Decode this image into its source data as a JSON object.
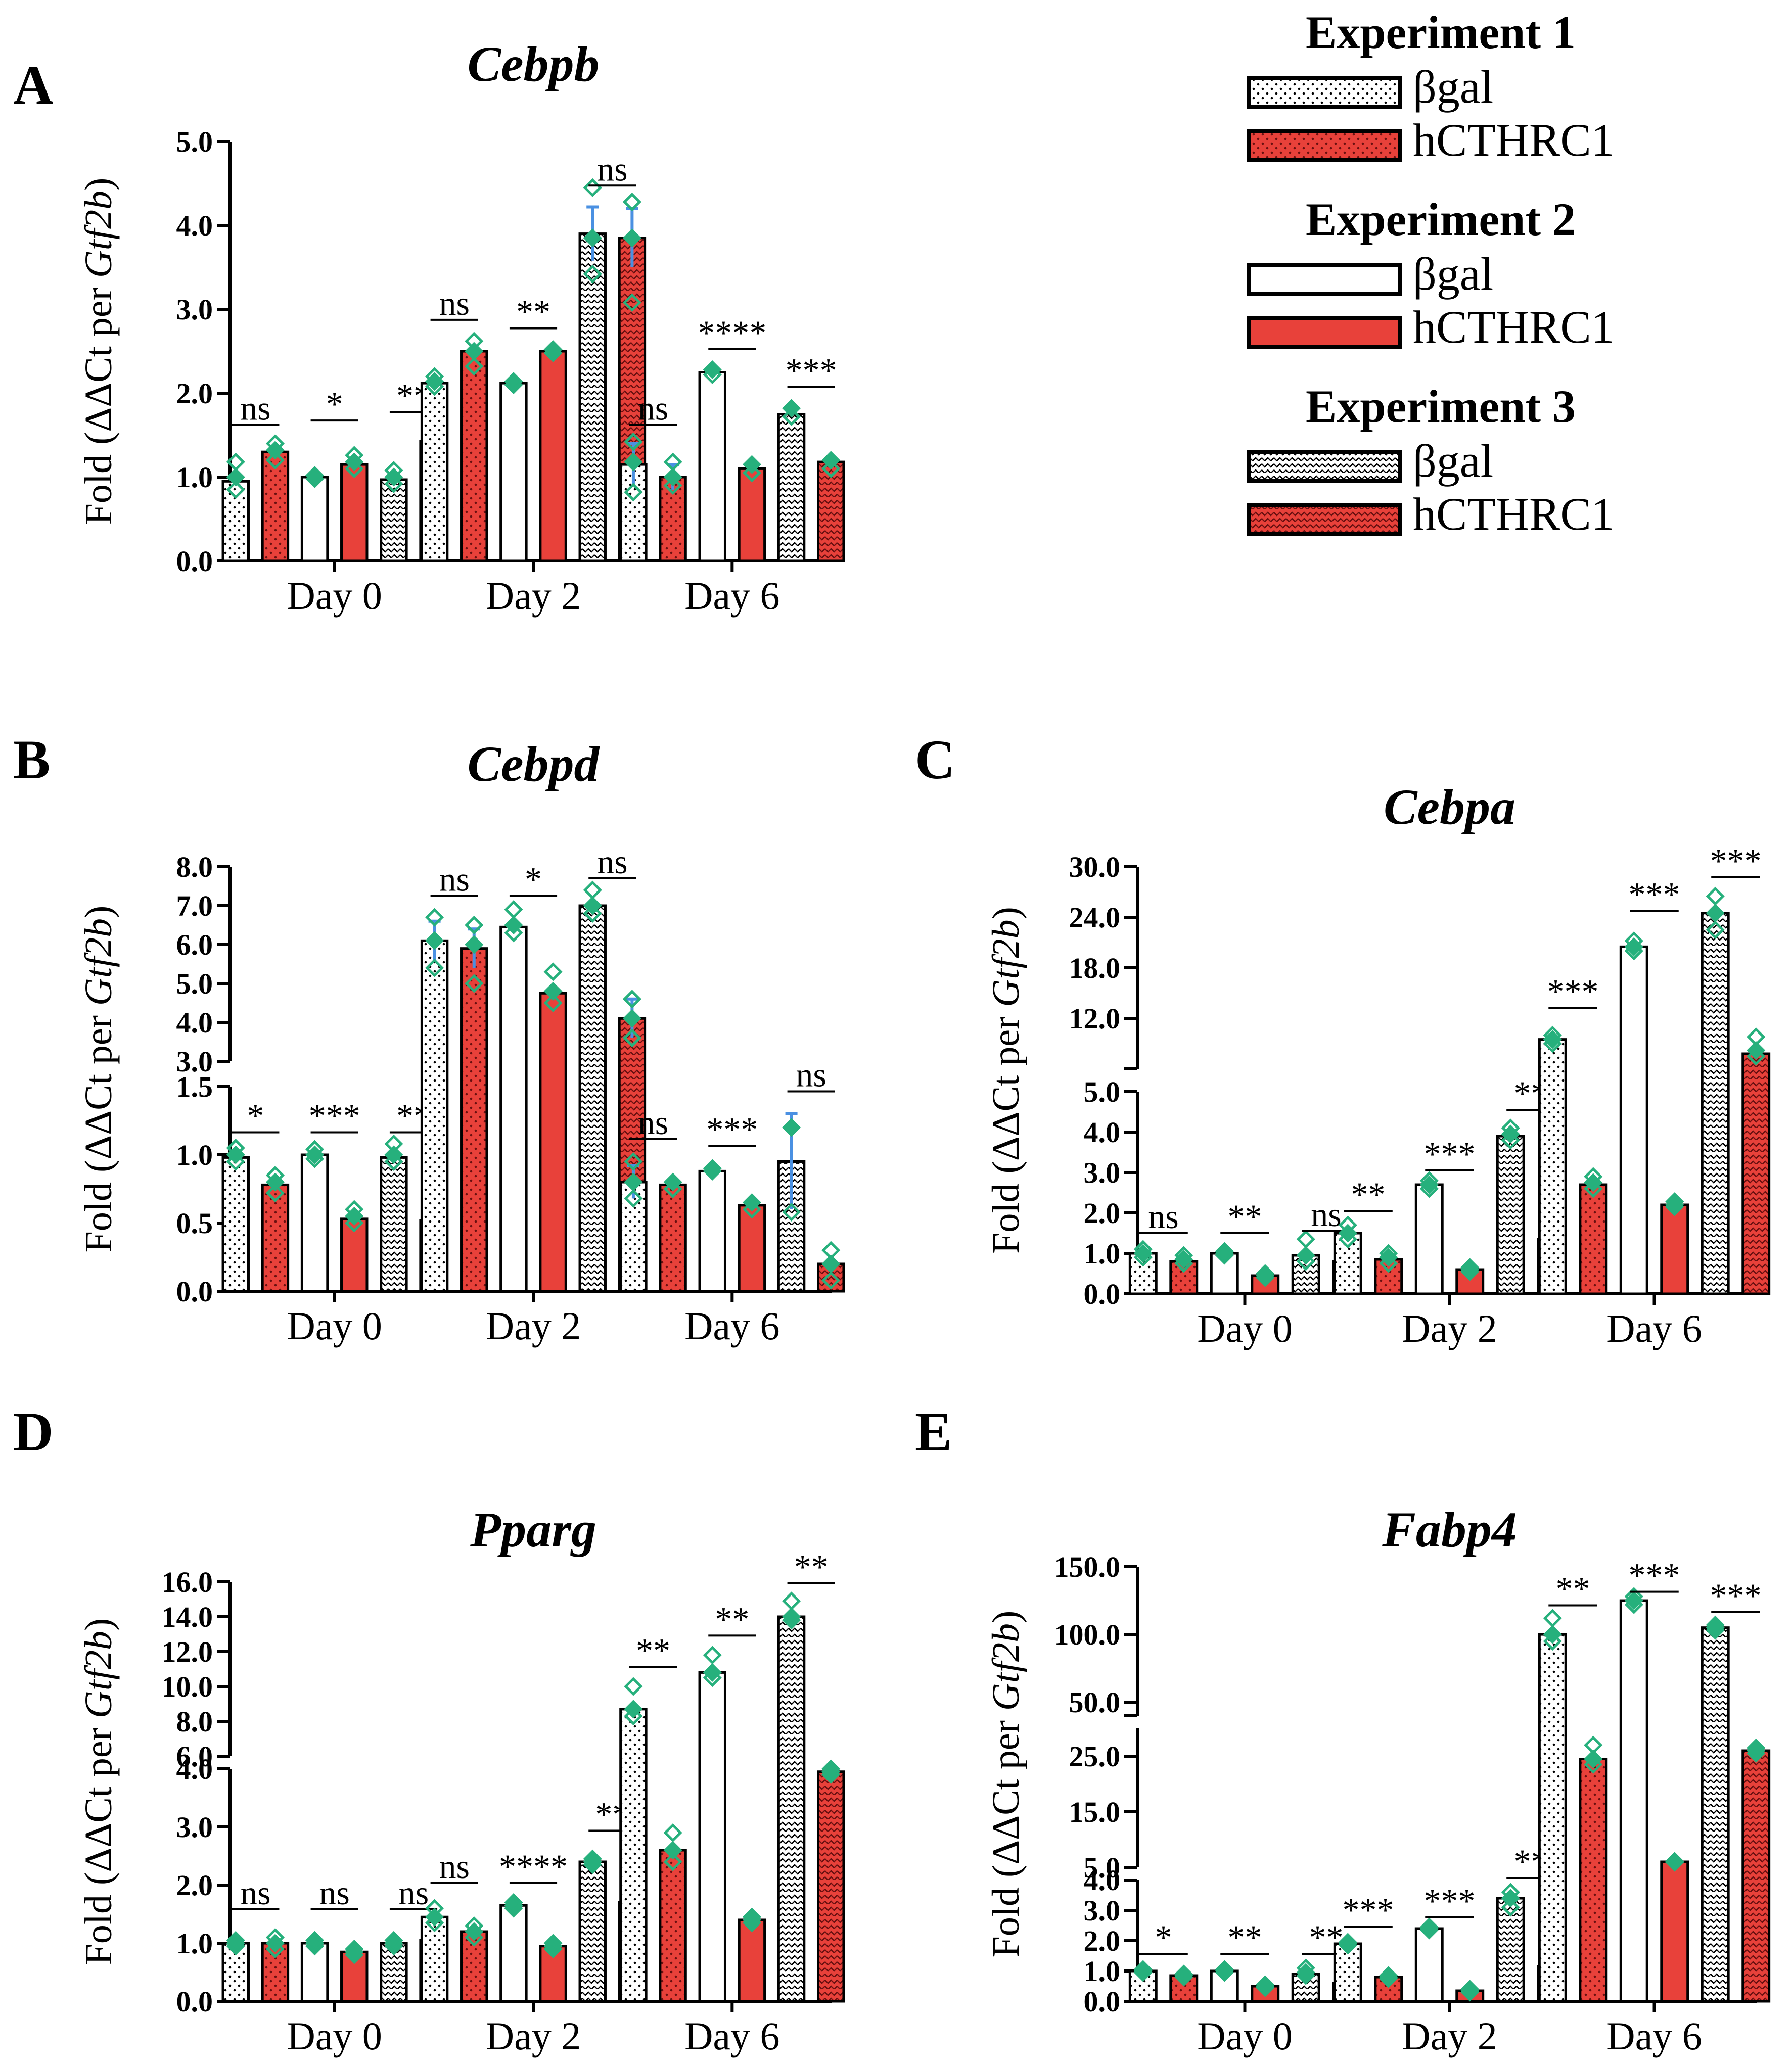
{
  "colors": {
    "bgal": "#ffffff",
    "hcthrc1": "#e8413a",
    "marker": "#26b07c",
    "errorbar": "#4a90e2",
    "axis": "#000000"
  },
  "legend": {
    "groups": [
      {
        "title": "Experiment 1",
        "items": [
          {
            "label": "βgal",
            "fill": "bgal",
            "pattern": "dots"
          },
          {
            "label": "hCTHRC1",
            "fill": "hcthrc1",
            "pattern": "dots"
          }
        ]
      },
      {
        "title": "Experiment 2",
        "items": [
          {
            "label": "βgal",
            "fill": "bgal",
            "pattern": "none"
          },
          {
            "label": "hCTHRC1",
            "fill": "hcthrc1",
            "pattern": "none"
          }
        ]
      },
      {
        "title": "Experiment 3",
        "items": [
          {
            "label": "βgal",
            "fill": "bgal",
            "pattern": "wave"
          },
          {
            "label": "hCTHRC1",
            "fill": "hcthrc1",
            "pattern": "wave"
          }
        ]
      }
    ]
  },
  "chart_data": [
    {
      "panel": "A",
      "title": "Cebpb",
      "type": "bar",
      "ylabel_pre": "Fold (ΔΔCt per ",
      "ylabel_gene": "Gtf2b",
      "ylabel_post": ")",
      "categories": [
        "Day 0",
        "Day 2",
        "Day 6"
      ],
      "bar_order": [
        "Exp1 βgal",
        "Exp1 hCTHRC1",
        "Exp2 βgal",
        "Exp2 hCTHRC1",
        "Exp3 βgal",
        "Exp3 hCTHRC1"
      ],
      "segments": [
        {
          "range": [
            0,
            5
          ],
          "ticks": [
            "0.0",
            "1.0",
            "2.0",
            "3.0",
            "4.0",
            "5.0"
          ]
        }
      ],
      "values": [
        [
          0.95,
          1.3,
          1.0,
          1.15,
          0.97,
          1.43
        ],
        [
          2.12,
          2.5,
          2.12,
          2.5,
          3.9,
          3.85
        ],
        [
          1.15,
          1.0,
          2.25,
          1.1,
          1.75,
          1.18
        ]
      ],
      "errors": [
        [
          0,
          0,
          0,
          0,
          0,
          0
        ],
        [
          0,
          0,
          0,
          0,
          0.32,
          0.35
        ],
        [
          0.25,
          0.15,
          0,
          0,
          0,
          0
        ]
      ],
      "points": [
        [
          [
            0.85,
            1.0,
            1.18
          ],
          [
            1.2,
            1.32,
            1.4
          ],
          [
            0.98,
            1.02
          ],
          [
            1.1,
            1.18,
            1.26
          ],
          [
            0.92,
            1.0,
            1.08
          ],
          [
            1.38,
            1.45,
            1.55
          ]
        ],
        [
          [
            2.08,
            2.14,
            2.2
          ],
          [
            2.32,
            2.5,
            2.62
          ],
          [
            2.1,
            2.14
          ],
          [
            2.48,
            2.52
          ],
          [
            3.42,
            3.85,
            4.45
          ],
          [
            3.08,
            3.85,
            4.28
          ]
        ],
        [
          [
            0.82,
            1.18,
            1.42
          ],
          [
            0.9,
            1.0,
            1.18
          ],
          [
            2.22,
            2.28
          ],
          [
            1.05,
            1.15
          ],
          [
            1.72,
            1.82
          ],
          [
            1.1,
            1.2
          ]
        ]
      ],
      "sig_labels": [
        [
          "ns",
          "*",
          "**"
        ],
        [
          "ns",
          "**",
          "ns"
        ],
        [
          "ns",
          "****",
          "***"
        ]
      ],
      "sig_values": [
        [
          1.6,
          1.65,
          1.75
        ],
        [
          2.85,
          2.75,
          4.45
        ],
        [
          1.6,
          2.5,
          2.05
        ]
      ]
    },
    {
      "panel": "B",
      "title": "Cebpd",
      "type": "bar",
      "ylabel_pre": "Fold (ΔΔCt per ",
      "ylabel_gene": "Gtf2b",
      "ylabel_post": ")",
      "categories": [
        "Day 0",
        "Day 2",
        "Day 6"
      ],
      "bar_order": [
        "Exp1 βgal",
        "Exp1 hCTHRC1",
        "Exp2 βgal",
        "Exp2 hCTHRC1",
        "Exp3 βgal",
        "Exp3 hCTHRC1"
      ],
      "segments": [
        {
          "range": [
            0,
            1.5
          ],
          "ticks": [
            "0.0",
            "0.5",
            "1.0",
            "1.5"
          ]
        },
        {
          "range": [
            3,
            8
          ],
          "ticks": [
            "3.0",
            "4.0",
            "5.0",
            "6.0",
            "7.0",
            "8.0"
          ]
        }
      ],
      "values": [
        [
          0.98,
          0.78,
          1.0,
          0.53,
          0.98,
          0.52
        ],
        [
          6.1,
          5.9,
          6.45,
          4.75,
          7.0,
          4.1
        ],
        [
          0.8,
          0.78,
          0.88,
          0.63,
          0.95,
          0.2
        ]
      ],
      "errors": [
        [
          0,
          0,
          0,
          0,
          0,
          0
        ],
        [
          0.5,
          0.5,
          0,
          0,
          0,
          0.5
        ],
        [
          0.12,
          0,
          0,
          0,
          0.35,
          0
        ]
      ],
      "points": [
        [
          [
            0.95,
            1.0,
            1.05
          ],
          [
            0.72,
            0.8,
            0.85
          ],
          [
            0.97,
            1.0,
            1.04
          ],
          [
            0.5,
            0.55,
            0.6
          ],
          [
            0.95,
            1.0,
            1.08
          ],
          [
            0.48,
            0.55,
            0.6
          ]
        ],
        [
          [
            5.4,
            6.1,
            6.7
          ],
          [
            5.0,
            6.0,
            6.5
          ],
          [
            6.3,
            6.5,
            6.9
          ],
          [
            4.5,
            4.8,
            5.3
          ],
          [
            6.8,
            7.0,
            7.4
          ],
          [
            3.6,
            4.1,
            4.6
          ]
        ],
        [
          [
            0.68,
            0.8,
            0.95
          ],
          [
            0.75,
            0.8
          ],
          [
            0.88,
            0.9
          ],
          [
            0.6,
            0.65
          ],
          [
            0.58,
            1.2
          ],
          [
            0.08,
            0.2,
            0.3
          ]
        ]
      ],
      "sig_labels": [
        [
          "*",
          "***",
          "**"
        ],
        [
          "ns",
          "*",
          "ns"
        ],
        [
          "ns",
          "***",
          "ns"
        ]
      ],
      "sig_values": [
        [
          1.15,
          1.15,
          1.15
        ],
        [
          7.2,
          7.2,
          7.65
        ],
        [
          1.1,
          1.05,
          1.45
        ]
      ]
    },
    {
      "panel": "C",
      "title": "Cebpa",
      "type": "bar",
      "ylabel_pre": "Fold (ΔΔCt per ",
      "ylabel_gene": "Gtf2b",
      "ylabel_post": ")",
      "categories": [
        "Day 0",
        "Day 2",
        "Day 6"
      ],
      "bar_order": [
        "Exp1 βgal",
        "Exp1 hCTHRC1",
        "Exp2 βgal",
        "Exp2 hCTHRC1",
        "Exp3 βgal",
        "Exp3 hCTHRC1"
      ],
      "segments": [
        {
          "range": [
            0,
            5
          ],
          "ticks": [
            "0.0",
            "1.0",
            "2.0",
            "3.0",
            "4.0",
            "5.0"
          ]
        },
        {
          "range": [
            6,
            30
          ],
          "ticks": [
            "12.0",
            "18.0",
            "24.0",
            "30.0"
          ]
        }
      ],
      "values": [
        [
          1.0,
          0.8,
          1.0,
          0.45,
          0.95,
          0.8
        ],
        [
          1.5,
          0.85,
          2.7,
          0.6,
          3.9,
          1.35
        ],
        [
          9.5,
          2.7,
          20.5,
          2.2,
          24.5,
          7.8
        ]
      ],
      "errors": [
        [
          0,
          0,
          0,
          0,
          0,
          0
        ],
        [
          0,
          0,
          0,
          0,
          0,
          0
        ],
        [
          0,
          0,
          0,
          0,
          0,
          0
        ]
      ],
      "points": [
        [
          [
            0.9,
            1.0,
            1.1
          ],
          [
            0.75,
            0.85,
            0.95
          ],
          [
            0.95,
            1.0,
            1.05
          ],
          [
            0.4,
            0.45,
            0.5
          ],
          [
            0.8,
            0.95,
            1.35
          ],
          [
            0.7,
            0.85,
            1.0
          ]
        ],
        [
          [
            1.35,
            1.5,
            1.7
          ],
          [
            0.75,
            0.9,
            1.0
          ],
          [
            2.6,
            2.7,
            2.8
          ],
          [
            0.55,
            0.6,
            0.65
          ],
          [
            3.8,
            3.95,
            4.1
          ],
          [
            1.1,
            1.4,
            1.75
          ]
        ],
        [
          [
            9.0,
            9.5,
            10.0
          ],
          [
            2.6,
            2.75,
            2.9
          ],
          [
            20.0,
            20.5,
            21.2
          ],
          [
            2.15,
            2.2,
            2.28
          ],
          [
            22.5,
            24.5,
            26.5
          ],
          [
            7.5,
            8.2,
            9.8
          ]
        ]
      ],
      "sig_labels": [
        [
          "ns",
          "**",
          "ns"
        ],
        [
          "**",
          "***",
          "**"
        ],
        [
          "***",
          "***",
          "***"
        ]
      ],
      "sig_values": [
        [
          1.45,
          1.45,
          1.5
        ],
        [
          2.0,
          3.0,
          4.5
        ],
        [
          13.0,
          24.5,
          28.5
        ]
      ]
    },
    {
      "panel": "D",
      "title": "Pparg",
      "type": "bar",
      "ylabel_pre": "Fold (ΔΔCt per ",
      "ylabel_gene": "Gtf2b",
      "ylabel_post": ")",
      "categories": [
        "Day 0",
        "Day 2",
        "Day 6"
      ],
      "bar_order": [
        "Exp1 βgal",
        "Exp1 hCTHRC1",
        "Exp2 βgal",
        "Exp2 hCTHRC1",
        "Exp3 βgal",
        "Exp3 hCTHRC1"
      ],
      "segments": [
        {
          "range": [
            0,
            4
          ],
          "ticks": [
            "0.0",
            "1.0",
            "2.0",
            "3.0",
            "4.0"
          ]
        },
        {
          "range": [
            6,
            16
          ],
          "ticks": [
            "6.0",
            "8.0",
            "10.0",
            "12.0",
            "14.0",
            "16.0"
          ]
        }
      ],
      "values": [
        [
          1.0,
          1.0,
          1.0,
          0.85,
          1.0,
          1.05
        ],
        [
          1.45,
          1.2,
          1.65,
          0.95,
          2.4,
          1.7
        ],
        [
          8.7,
          2.6,
          10.8,
          1.4,
          14.0,
          3.95
        ]
      ],
      "errors": [
        [
          0,
          0,
          0,
          0,
          0,
          0
        ],
        [
          0,
          0,
          0,
          0,
          0,
          0
        ],
        [
          0,
          0,
          0,
          0,
          0,
          0
        ]
      ],
      "points": [
        [
          [
            0.95,
            1.0,
            1.05
          ],
          [
            0.9,
            1.0,
            1.1
          ],
          [
            0.95,
            1.0,
            1.05
          ],
          [
            0.8,
            0.85,
            0.9
          ],
          [
            0.95,
            1.0,
            1.05
          ],
          [
            1.0,
            1.05,
            1.1
          ]
        ],
        [
          [
            1.35,
            1.45,
            1.6
          ],
          [
            1.1,
            1.2,
            1.3
          ],
          [
            1.6,
            1.65,
            1.7
          ],
          [
            0.9,
            0.95,
            1.0
          ],
          [
            2.35,
            2.4,
            2.45
          ],
          [
            1.65,
            1.7,
            1.75
          ]
        ],
        [
          [
            8.3,
            8.7,
            10.0
          ],
          [
            2.4,
            2.6,
            2.9
          ],
          [
            10.5,
            10.8,
            11.8
          ],
          [
            1.35,
            1.4,
            1.45
          ],
          [
            13.8,
            14.0,
            14.9
          ],
          [
            3.9,
            3.95,
            4.0
          ]
        ]
      ],
      "sig_labels": [
        [
          "ns",
          "ns",
          "ns"
        ],
        [
          "ns",
          "****",
          "**"
        ],
        [
          "**",
          "**",
          "**"
        ]
      ],
      "sig_values": [
        [
          1.55,
          1.55,
          1.55
        ],
        [
          2.0,
          2.0,
          2.9
        ],
        [
          11.0,
          12.8,
          15.8
        ]
      ]
    },
    {
      "panel": "E",
      "title": "Fabp4",
      "type": "bar",
      "ylabel_pre": "Fold (ΔΔCt per ",
      "ylabel_gene": "Gtf2b",
      "ylabel_post": ")",
      "categories": [
        "Day 0",
        "Day 2",
        "Day 6"
      ],
      "bar_order": [
        "Exp1 βgal",
        "Exp1 hCTHRC1",
        "Exp2 βgal",
        "Exp2 hCTHRC1",
        "Exp3 βgal",
        "Exp3 hCTHRC1"
      ],
      "segments": [
        {
          "range": [
            0,
            4
          ],
          "ticks": [
            "0.0",
            "1.0",
            "2.0",
            "3.0",
            "4.0"
          ]
        },
        {
          "range": [
            5,
            30
          ],
          "ticks": [
            "5.0",
            "15.0",
            "25.0"
          ]
        },
        {
          "range": [
            40,
            150
          ],
          "ticks": [
            "50.0",
            "100.0",
            "150.0"
          ]
        }
      ],
      "values": [
        [
          1.0,
          0.85,
          1.0,
          0.5,
          0.9,
          0.6
        ],
        [
          1.9,
          0.8,
          2.4,
          0.35,
          3.4,
          1.15
        ],
        [
          100.0,
          24.5,
          125.0,
          6.0,
          105.0,
          26.0
        ]
      ],
      "errors": [
        [
          0,
          0,
          0,
          0,
          0,
          0
        ],
        [
          0,
          0,
          0,
          0,
          0,
          0
        ],
        [
          0,
          0,
          0,
          0,
          0,
          0
        ]
      ],
      "points": [
        [
          [
            0.95,
            1.0,
            1.05
          ],
          [
            0.8,
            0.85,
            0.9
          ],
          [
            0.95,
            1.0,
            1.05
          ],
          [
            0.45,
            0.5,
            0.55
          ],
          [
            0.85,
            0.95,
            1.1
          ],
          [
            0.55,
            0.6,
            0.65
          ]
        ],
        [
          [
            1.85,
            1.9,
            1.95
          ],
          [
            0.75,
            0.8,
            0.85
          ],
          [
            2.35,
            2.4,
            2.45
          ],
          [
            0.3,
            0.35,
            0.4
          ],
          [
            3.1,
            3.4,
            3.6
          ],
          [
            1.1,
            1.15,
            1.2
          ]
        ],
        [
          [
            95.0,
            100.0,
            112.0
          ],
          [
            23.5,
            24.5,
            27.0
          ],
          [
            122.0,
            125.0,
            128.0
          ],
          [
            5.9,
            6.0,
            6.1
          ],
          [
            103.0,
            105.0,
            107.0
          ],
          [
            25.5,
            26.0,
            26.5
          ]
        ]
      ],
      "sig_labels": [
        [
          "*",
          "**",
          "**"
        ],
        [
          "***",
          "***",
          "**"
        ],
        [
          "**",
          "***",
          "***"
        ]
      ],
      "sig_values": [
        [
          1.5,
          1.5,
          1.5
        ],
        [
          2.4,
          2.7,
          4.4
        ],
        [
          120.0,
          130.0,
          115.0
        ]
      ]
    }
  ]
}
